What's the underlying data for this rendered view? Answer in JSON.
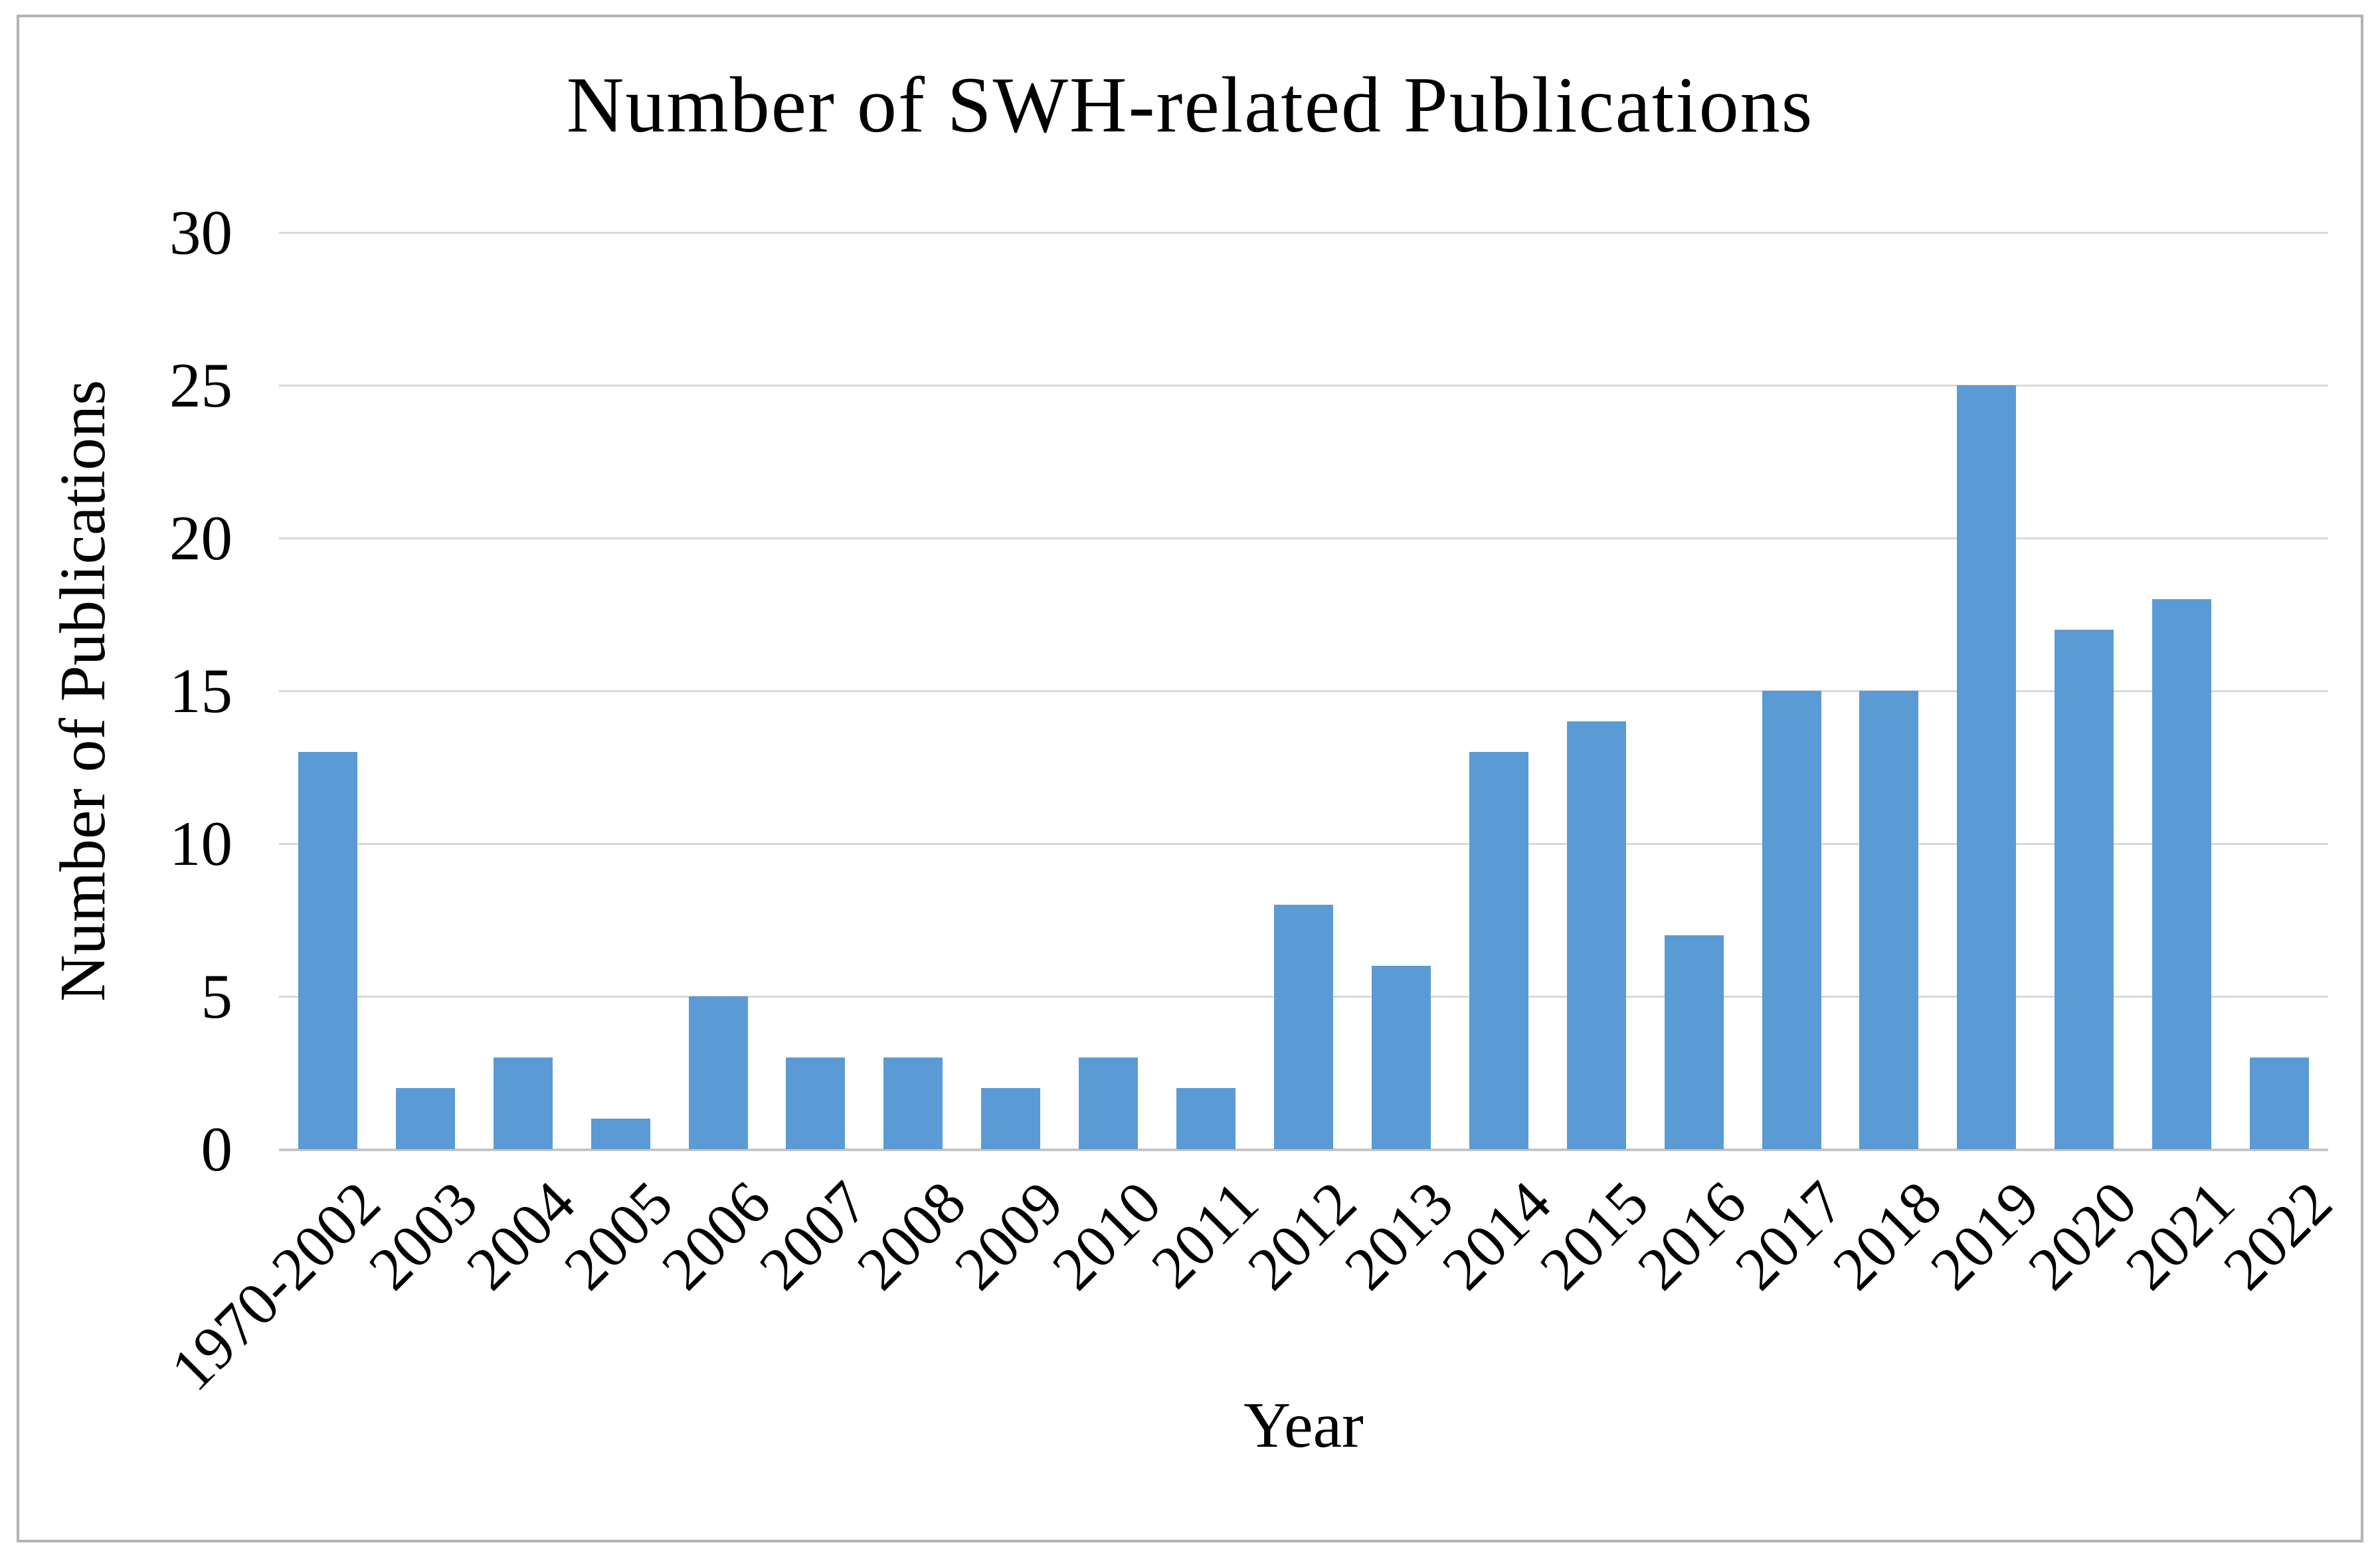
{
  "figure": {
    "background_color": "#ffffff",
    "border_color": "#b3b3b3"
  },
  "chart_data": {
    "type": "bar",
    "title": "Number of SWH-related Publications",
    "xlabel": "Year",
    "ylabel": "Number of Publications",
    "categories": [
      "1970-2002",
      "2003",
      "2004",
      "2005",
      "2006",
      "2007",
      "2008",
      "2009",
      "2010",
      "2011",
      "2012",
      "2013",
      "2014",
      "2015",
      "2016",
      "2017",
      "2018",
      "2019",
      "2020",
      "2021",
      "2022"
    ],
    "values": [
      13,
      2,
      3,
      1,
      5,
      3,
      3,
      2,
      3,
      2,
      8,
      6,
      13,
      14,
      7,
      15,
      15,
      25,
      17,
      18,
      3
    ],
    "ylim": [
      0,
      30
    ],
    "yticks": [
      0,
      5,
      10,
      15,
      20,
      25,
      30
    ],
    "grid": true,
    "legend": false,
    "bar_color": "#5B9BD5",
    "gridline_color": "#D9D9D9",
    "axis_line_color": "#C6C6C6",
    "text_color": "#000000"
  }
}
